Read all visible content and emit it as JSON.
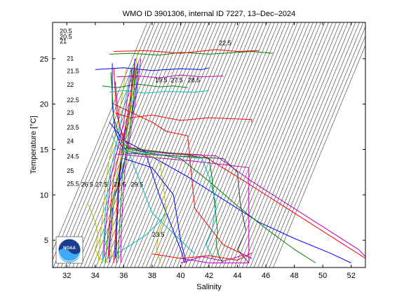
{
  "chart_data": {
    "type": "line",
    "title": "WMO ID 3901306, internal ID 7227, 13–Dec–2024",
    "xlabel": "Salinity",
    "ylabel": "Temperature [°C]",
    "xlim": [
      31,
      53
    ],
    "ylim": [
      2,
      29
    ],
    "xticks": [
      32,
      34,
      36,
      38,
      40,
      42,
      44,
      46,
      48,
      50,
      52
    ],
    "yticks": [
      5,
      10,
      15,
      20,
      25
    ],
    "grid": false,
    "legend": "none",
    "logo_text": "NOAA",
    "isopycnal_labels": [
      {
        "text": "20.5",
        "s": 31.5,
        "t": 27.8
      },
      {
        "text": "20.5",
        "s": 31.5,
        "t": 27.2
      },
      {
        "text": "21",
        "s": 31.5,
        "t": 26.7
      },
      {
        "text": "21",
        "s": 32.0,
        "t": 24.8
      },
      {
        "text": "21.5",
        "s": 32.0,
        "t": 23.4
      },
      {
        "text": "22",
        "s": 32.0,
        "t": 21.9
      },
      {
        "text": "22.5",
        "s": 32.0,
        "t": 20.2
      },
      {
        "text": "23",
        "s": 32.0,
        "t": 18.8
      },
      {
        "text": "23.5",
        "s": 32.0,
        "t": 17.2
      },
      {
        "text": "24",
        "s": 32.0,
        "t": 15.7
      },
      {
        "text": "24.5",
        "s": 32.0,
        "t": 14.0
      },
      {
        "text": "25",
        "s": 32.0,
        "t": 12.4
      },
      {
        "text": "25.5",
        "s": 32.0,
        "t": 11.0
      },
      {
        "text": "26.5",
        "s": 33.0,
        "t": 10.9
      },
      {
        "text": "27.5",
        "s": 34.0,
        "t": 10.9
      },
      {
        "text": "28.5",
        "s": 35.3,
        "t": 10.9
      },
      {
        "text": "29.5",
        "s": 36.5,
        "t": 10.9
      },
      {
        "text": "19.5",
        "s": 38.2,
        "t": 22.4
      },
      {
        "text": "27.5",
        "s": 39.3,
        "t": 22.4
      },
      {
        "text": "28.5",
        "s": 40.5,
        "t": 22.4
      },
      {
        "text": "22.5",
        "s": 42.7,
        "t": 26.5
      },
      {
        "text": "23.5",
        "s": 38.0,
        "t": 5.4
      }
    ],
    "series": [
      {
        "color": "#0000ff",
        "s": [
          35.0,
          35.0,
          35.1,
          35.2,
          35.4,
          35.8,
          36.1,
          36.3,
          36.5,
          36.7,
          36.9,
          37.0
        ],
        "t": [
          2.5,
          4,
          6,
          8,
          10,
          12,
          14,
          16,
          18,
          20,
          22,
          24.5
        ]
      },
      {
        "color": "#008000",
        "s": [
          34.7,
          34.8,
          34.9,
          35.1,
          35.3,
          35.6,
          35.9,
          36.1,
          36.3,
          36.5,
          36.6
        ],
        "t": [
          2.5,
          4,
          6,
          8,
          10,
          12,
          14,
          16,
          18,
          20,
          24
        ]
      },
      {
        "color": "#ff0000",
        "s": [
          35.3,
          35.4,
          35.5,
          35.6,
          35.8,
          36.0,
          36.2,
          36.4,
          36.6,
          36.8
        ],
        "t": [
          2.5,
          5,
          8,
          11,
          14,
          16,
          18,
          20,
          22,
          25
        ]
      },
      {
        "color": "#00bfbf",
        "s": [
          34.5,
          34.6,
          34.7,
          34.9,
          35.1,
          35.4,
          35.7,
          35.9,
          36.2,
          36.5
        ],
        "t": [
          2.5,
          5,
          8,
          11,
          13,
          15,
          17,
          19,
          21,
          24
        ]
      },
      {
        "color": "#bf00bf",
        "s": [
          35.8,
          35.8,
          35.9,
          36.0,
          36.1,
          36.3,
          36.5,
          36.7,
          36.9,
          37.2
        ],
        "t": [
          2.5,
          5,
          8,
          11,
          13,
          15,
          17,
          19,
          21,
          25
        ]
      },
      {
        "color": "#bfbf00",
        "s": [
          34.2,
          34.4,
          34.6,
          34.8,
          35.0,
          35.3,
          35.6,
          35.9,
          36.2
        ],
        "t": [
          2.5,
          6,
          9,
          12,
          14,
          16,
          18,
          21,
          24
        ]
      },
      {
        "color": "#404040",
        "s": [
          35.5,
          35.5,
          35.6,
          35.7,
          35.9,
          36.1,
          36.3,
          36.6,
          36.9
        ],
        "t": [
          2.5,
          6,
          9,
          12,
          14,
          16,
          18,
          21,
          24
        ]
      },
      {
        "color": "#0000ff",
        "s": [
          35.2,
          35.2,
          35.4,
          35.8,
          36.3,
          38.0,
          40.5,
          43.0,
          45.5,
          48.0,
          50.5,
          52.0
        ],
        "t": [
          24.5,
          20,
          17,
          15.5,
          14.8,
          14.2,
          12.0,
          9.5,
          7.0,
          5.2,
          3.6,
          2.5
        ]
      },
      {
        "color": "#ff0000",
        "s": [
          35.3,
          35.5,
          35.9,
          36.5,
          38.5,
          41.5,
          44.0,
          46.5,
          49.0,
          51.5,
          53.0
        ],
        "t": [
          24.0,
          19,
          16.5,
          15.2,
          14.7,
          14.4,
          12.0,
          9.5,
          7.0,
          4.5,
          3.0
        ]
      },
      {
        "color": "#008000",
        "s": [
          35.1,
          35.3,
          35.8,
          36.4,
          38.0,
          40.0,
          42.0,
          44.0,
          46.0,
          48.0,
          49.5
        ],
        "t": [
          23.5,
          18.5,
          16.0,
          15.0,
          14.6,
          14.0,
          11.5,
          8.8,
          6.3,
          4.0,
          2.5
        ]
      },
      {
        "color": "#bf00bf",
        "s": [
          35.4,
          35.7,
          36.3,
          37.0,
          39.5,
          42.5,
          45.0,
          47.5,
          50.0,
          52.5,
          53.0
        ],
        "t": [
          22.5,
          17.5,
          15.3,
          14.9,
          14.5,
          14.3,
          11.5,
          9.0,
          6.5,
          4.0,
          3.2
        ]
      },
      {
        "color": "#00bfbf",
        "s": [
          35.2,
          35.6,
          36.4,
          38.0,
          39.0,
          40.0,
          41.0
        ],
        "t": [
          16.5,
          15.2,
          14.5,
          8.0,
          6.5,
          5.0,
          3.5
        ]
      },
      {
        "color": "#0000ff",
        "s": [
          35.0,
          36.0,
          37.5,
          38.5,
          39.5,
          40.0,
          40.3
        ],
        "t": [
          18,
          16,
          14.8,
          10,
          6,
          4,
          2.5
        ]
      },
      {
        "color": "#ff0000",
        "s": [
          35.3,
          38.0,
          39.0,
          40.5,
          41.0,
          43.0,
          45.0
        ],
        "t": [
          20.0,
          18.0,
          17.0,
          16.5,
          8.5,
          4.5,
          3.0
        ]
      },
      {
        "color": "#008000",
        "s": [
          36.0,
          40.0,
          42.0,
          42.2,
          42.4,
          42.6,
          42.5,
          42.7,
          43.0
        ],
        "t": [
          15.2,
          14.5,
          14.0,
          12.0,
          9.0,
          6.0,
          4.5,
          3.2,
          2.5
        ]
      },
      {
        "color": "#bf00bf",
        "s": [
          35.5,
          41.0,
          44.8,
          44.8,
          44.8,
          44.8,
          42.0,
          40.0
        ],
        "t": [
          14.5,
          13.7,
          13.0,
          10.0,
          6.0,
          2.5,
          2.5,
          3.0
        ]
      },
      {
        "color": "#bfbf00",
        "s": [
          36.0,
          38.5,
          38.8,
          39.0,
          38.5,
          38.3,
          38.6
        ],
        "t": [
          15.0,
          14.0,
          11.0,
          8.0,
          6.0,
          4.0,
          2.5
        ]
      },
      {
        "color": "#00bfbf",
        "s": [
          36.2,
          41.5,
          42.0,
          42.5,
          42.2,
          41.8,
          42.3
        ],
        "t": [
          14.8,
          14.0,
          12.0,
          9.0,
          6.0,
          4.5,
          3.0
        ]
      },
      {
        "color": "#0000ff",
        "s": [
          36.0,
          38.0,
          39.5,
          40.0,
          40.4
        ],
        "t": [
          14.0,
          13.0,
          10.0,
          5.0,
          2.5
        ]
      },
      {
        "color": "#404040",
        "s": [
          36.1,
          43.0,
          44.0,
          44.2,
          44.6,
          44.0,
          44.8
        ],
        "t": [
          14.6,
          14.0,
          12.5,
          9.0,
          6.0,
          4.0,
          2.5
        ]
      },
      {
        "color": "#ff0000",
        "s": [
          35.4,
          36.5,
          38.0,
          40.0,
          42.0,
          45.0,
          45.0
        ],
        "t": [
          19.0,
          18.5,
          18.8,
          18.2,
          18.5,
          18.3,
          18.0
        ]
      },
      {
        "color": "#008000",
        "s": [
          35.0,
          36.5,
          38.5,
          40.0,
          42.0,
          45.0,
          46.5
        ],
        "t": [
          25.5,
          25.6,
          25.4,
          25.7,
          25.5,
          25.8,
          25.6
        ]
      },
      {
        "color": "#ff0000",
        "s": [
          35.3,
          37.5,
          40.0,
          42.5,
          44.0,
          45.5
        ],
        "t": [
          25.8,
          25.9,
          25.6,
          26.0,
          25.8,
          25.9
        ]
      },
      {
        "color": "#0000ff",
        "s": [
          34.0,
          36.0,
          38.0,
          40.0,
          41.5,
          42.0
        ],
        "t": [
          23.8,
          24.0,
          23.7,
          23.9,
          23.8,
          24.0
        ]
      },
      {
        "color": "#bf00bf",
        "s": [
          35.5,
          37.0,
          38.5,
          40.0,
          41.5,
          43.0
        ],
        "t": [
          23.0,
          23.1,
          22.9,
          23.2,
          23.0,
          23.1
        ]
      },
      {
        "color": "#00bfbf",
        "s": [
          35.0,
          36.0,
          37.5,
          39.0,
          41.0,
          42.0
        ],
        "t": [
          21.3,
          21.5,
          21.2,
          21.4,
          21.3,
          21.5
        ]
      },
      {
        "color": "#008000",
        "s": [
          34.5,
          35.5,
          37.0,
          38.5,
          39.5,
          40.5
        ],
        "t": [
          22.0,
          21.8,
          22.2,
          21.9,
          22.0,
          21.8
        ]
      },
      {
        "color": "#bfbf00",
        "s": [
          33.5,
          34.0,
          34.2,
          34.0,
          34.3,
          35.0
        ],
        "t": [
          9.0,
          7.0,
          5.5,
          4.0,
          3.0,
          2.5
        ]
      },
      {
        "color": "#00bfbf",
        "s": [
          35.0,
          36.0,
          37.5,
          38.5,
          39.0
        ],
        "t": [
          3.0,
          4.0,
          5.5,
          7.0,
          8.0
        ]
      },
      {
        "color": "#ff0000",
        "s": [
          38.0,
          40.0,
          42.0,
          44.0,
          45.0
        ],
        "t": [
          3.5,
          3.0,
          3.3,
          2.8,
          3.6
        ]
      },
      {
        "color": "#bf00bf",
        "s": [
          40.0,
          41.5,
          43.0,
          44.5,
          45.0
        ],
        "t": [
          2.5,
          3.2,
          2.7,
          3.4,
          3.0
        ]
      },
      {
        "color": "#0000ff",
        "s": [
          35.4,
          35.5,
          35.6,
          35.7,
          35.8,
          36.0,
          36.2,
          36.4,
          36.6,
          36.8
        ],
        "t": [
          3,
          6,
          9,
          12,
          14,
          16,
          18,
          20,
          22,
          25
        ]
      },
      {
        "color": "#008000",
        "s": [
          35.6,
          35.7,
          35.8,
          35.9,
          36.1,
          36.3,
          36.5,
          36.7,
          36.9
        ],
        "t": [
          3,
          6,
          9,
          12,
          14,
          16,
          18,
          21,
          24
        ]
      },
      {
        "color": "#ff0000",
        "s": [
          34.9,
          35.0,
          35.1,
          35.3,
          35.6,
          35.9,
          36.2,
          36.5,
          36.8
        ],
        "t": [
          3,
          6,
          9,
          12,
          14,
          16,
          18,
          21,
          24
        ]
      },
      {
        "color": "#bfbf00",
        "s": [
          35.1,
          35.2,
          35.3,
          35.5,
          35.8,
          36.1,
          36.4,
          36.6,
          37.0
        ],
        "t": [
          3,
          6,
          9,
          12,
          14,
          16,
          18,
          21,
          26
        ]
      },
      {
        "color": "#bf00bf",
        "s": [
          34.6,
          34.7,
          34.9,
          35.1,
          35.4,
          35.7,
          36.0,
          36.3,
          36.6
        ],
        "t": [
          3,
          6,
          9,
          12,
          14,
          16,
          18,
          21,
          24
        ]
      }
    ]
  }
}
